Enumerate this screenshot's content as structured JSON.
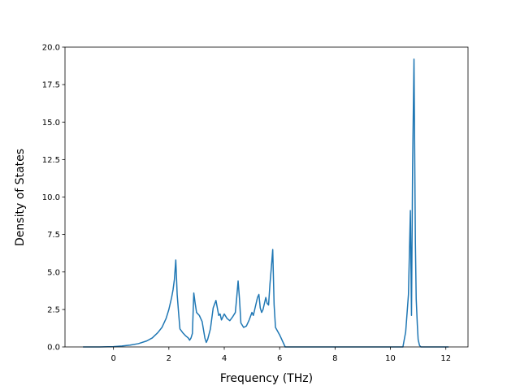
{
  "chart_data": {
    "type": "line",
    "title": "",
    "xlabel": "Frequency (THz)",
    "ylabel": "Density of States",
    "xlim": [
      -1.75,
      12.8
    ],
    "ylim": [
      0,
      20.0
    ],
    "xticks": [
      0,
      2,
      4,
      6,
      8,
      10,
      12
    ],
    "yticks": [
      0.0,
      2.5,
      5.0,
      7.5,
      10.0,
      12.5,
      15.0,
      17.5,
      20.0
    ],
    "xtick_labels": [
      "0",
      "2",
      "4",
      "6",
      "8",
      "10",
      "12"
    ],
    "ytick_labels": [
      "0.0",
      "2.5",
      "5.0",
      "7.5",
      "10.0",
      "12.5",
      "15.0",
      "17.5",
      "20.0"
    ],
    "grid": false,
    "line_color": "#1f77b4",
    "series": [
      {
        "x": [
          -1.1,
          -0.5,
          0.0,
          0.3,
          0.6,
          0.9,
          1.2,
          1.4,
          1.6,
          1.75,
          1.9,
          2.0,
          2.1,
          2.15,
          2.2,
          2.25,
          2.3,
          2.35,
          2.4,
          2.5,
          2.6,
          2.7,
          2.75,
          2.8,
          2.85,
          2.9,
          2.95,
          3.0,
          3.1,
          3.2,
          3.3,
          3.35,
          3.4,
          3.5,
          3.6,
          3.7,
          3.75,
          3.8,
          3.85,
          3.9,
          4.0,
          4.1,
          4.2,
          4.3,
          4.4,
          4.45,
          4.5,
          4.55,
          4.6,
          4.7,
          4.8,
          4.9,
          5.0,
          5.05,
          5.1,
          5.2,
          5.25,
          5.3,
          5.35,
          5.4,
          5.5,
          5.55,
          5.6,
          5.65,
          5.7,
          5.75,
          5.8,
          5.85,
          6.0,
          6.2,
          7.0,
          8.0,
          9.0,
          10.0,
          10.45,
          10.55,
          10.65,
          10.72,
          10.76,
          10.8,
          10.85,
          10.9,
          10.93,
          10.97,
          11.0,
          11.05,
          11.1,
          11.5,
          12.1
        ],
        "y": [
          0.0,
          0.0,
          0.02,
          0.06,
          0.12,
          0.22,
          0.4,
          0.6,
          0.95,
          1.3,
          1.9,
          2.5,
          3.3,
          3.8,
          4.5,
          5.8,
          3.5,
          2.3,
          1.2,
          0.95,
          0.75,
          0.6,
          0.45,
          0.6,
          0.9,
          3.6,
          2.9,
          2.3,
          2.1,
          1.7,
          0.6,
          0.3,
          0.5,
          1.2,
          2.6,
          3.1,
          2.6,
          2.1,
          2.2,
          1.8,
          2.2,
          1.9,
          1.75,
          2.0,
          2.3,
          3.3,
          4.4,
          3.2,
          1.6,
          1.3,
          1.4,
          1.8,
          2.3,
          2.1,
          2.5,
          3.3,
          3.5,
          2.6,
          2.3,
          2.5,
          3.3,
          2.9,
          2.8,
          4.2,
          5.3,
          6.5,
          2.8,
          1.3,
          0.8,
          0.0,
          0.0,
          0.0,
          0.0,
          0.0,
          0.0,
          1.0,
          3.5,
          9.1,
          2.1,
          12.0,
          19.2,
          7.0,
          3.2,
          1.5,
          0.5,
          0.1,
          0.0,
          0.0,
          0.0
        ]
      }
    ]
  }
}
